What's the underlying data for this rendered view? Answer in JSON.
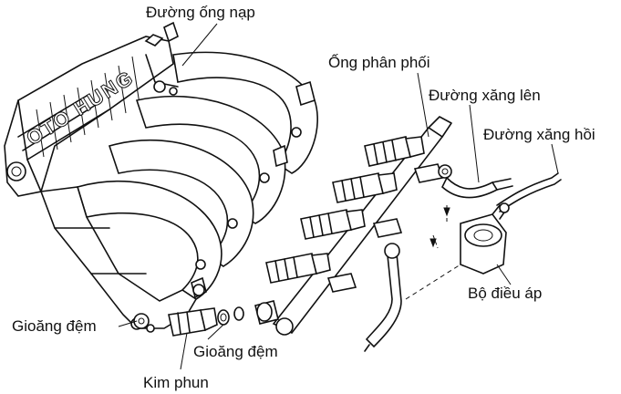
{
  "labels": {
    "intake_line": "Đường ống nạp",
    "distribution_pipe": "Ống phân phối",
    "fuel_supply_line": "Đường xăng lên",
    "fuel_return_line": "Đường xăng hồi",
    "pressure_regulator": "Bộ điều áp",
    "gasket_left": "Gioăng đệm",
    "gasket_center": "Gioăng đệm",
    "injector": "Kim phun"
  },
  "watermark": "OTO HUNG"
}
